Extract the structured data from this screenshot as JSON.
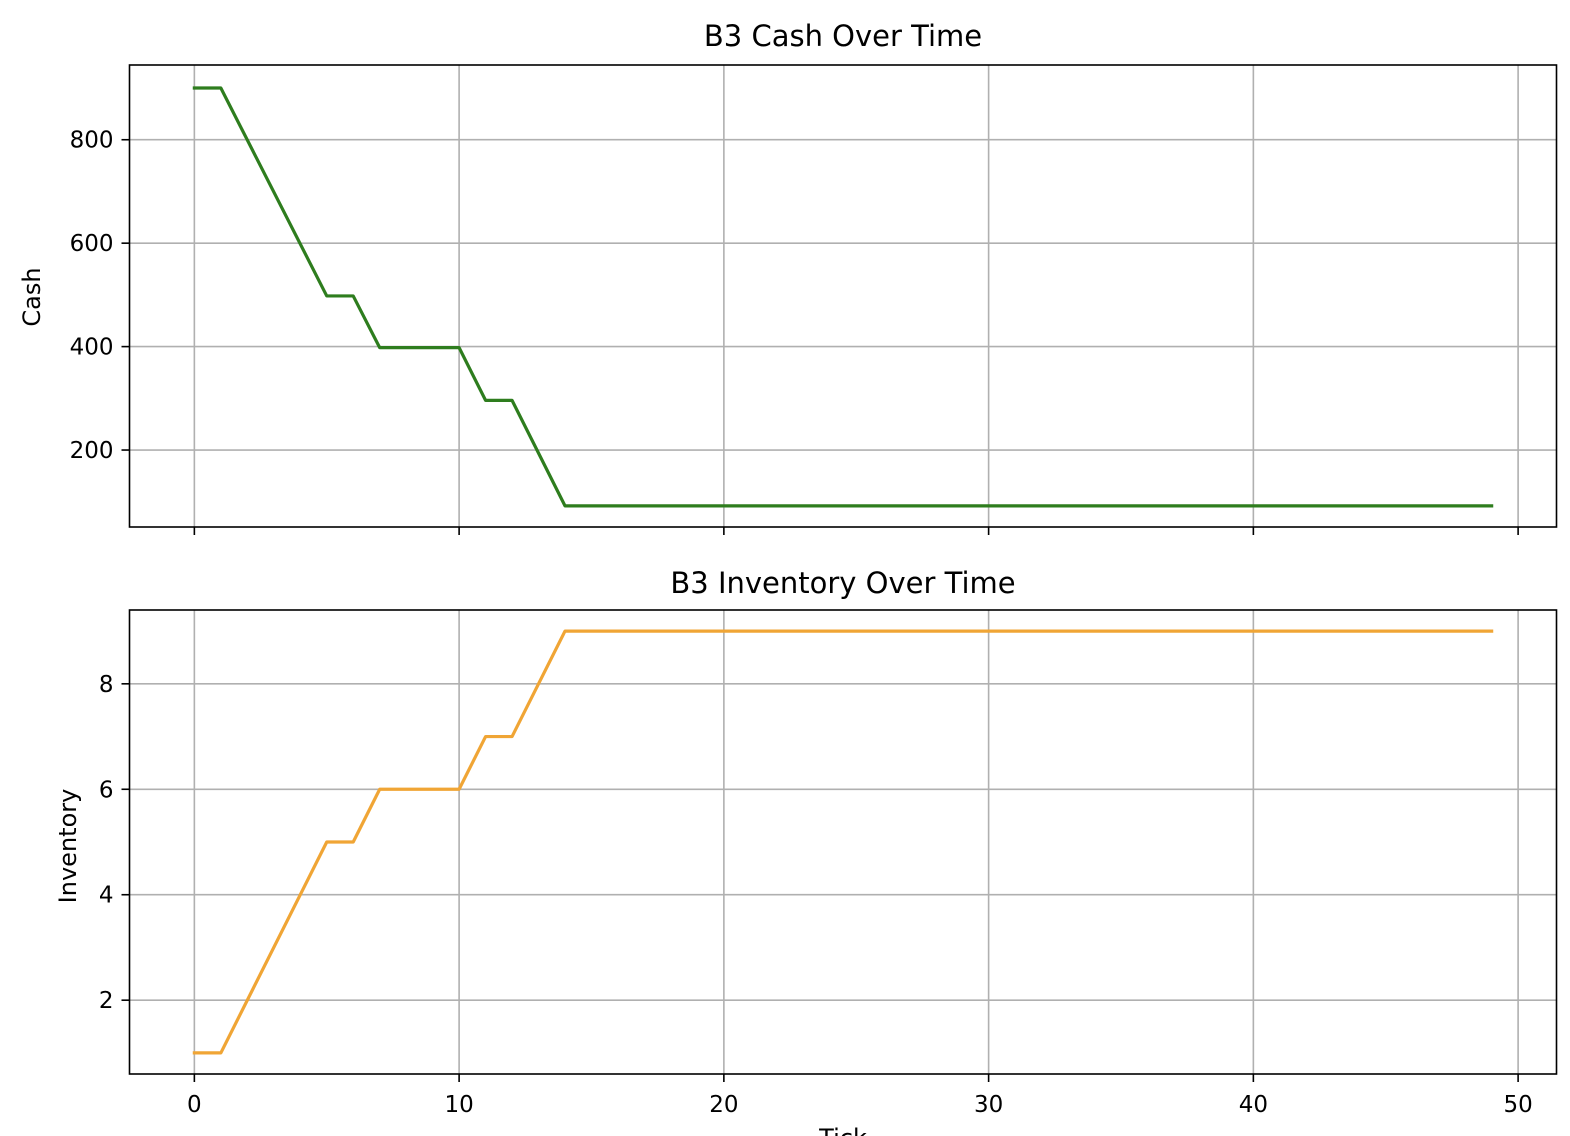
{
  "chart_data": [
    {
      "type": "line",
      "title": "B3 Cash Over Time",
      "xlabel": "",
      "ylabel": "Cash",
      "xlim": [
        -2.45,
        51.45
      ],
      "ylim": [
        51.2,
        944.5
      ],
      "xticks": [
        0,
        10,
        20,
        30,
        40,
        50
      ],
      "yticks": [
        200,
        400,
        600,
        800
      ],
      "x_tick_labels_visible": false,
      "grid": true,
      "series": [
        {
          "color": "#2e7d1e",
          "x": [
            0,
            1,
            5,
            6,
            7,
            10,
            11,
            12,
            14,
            49
          ],
          "y": [
            900,
            900,
            498,
            498,
            398,
            398,
            296,
            296,
            92,
            92
          ]
        }
      ]
    },
    {
      "type": "line",
      "title": "B3 Inventory Over Time",
      "xlabel": "Tick",
      "ylabel": "Inventory",
      "xlim": [
        -2.45,
        51.45
      ],
      "ylim": [
        0.6,
        9.4
      ],
      "xticks": [
        0,
        10,
        20,
        30,
        40,
        50
      ],
      "yticks": [
        2,
        4,
        6,
        8
      ],
      "x_tick_labels_visible": true,
      "grid": true,
      "series": [
        {
          "color": "#f0a535",
          "x": [
            0,
            1,
            5,
            6,
            7,
            10,
            11,
            12,
            14,
            49
          ],
          "y": [
            1,
            1,
            5,
            5,
            6,
            6,
            7,
            7,
            9,
            9
          ]
        }
      ]
    }
  ]
}
